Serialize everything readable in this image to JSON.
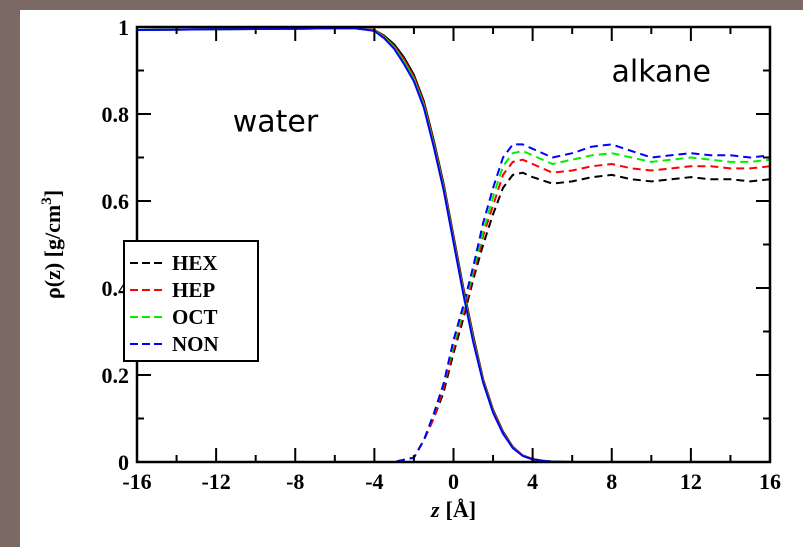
{
  "chart_data": {
    "type": "line",
    "xlabel_var": "z",
    "xlabel_unit": "[Å]",
    "ylabel_prefix": "ρ(z) [g/cm",
    "ylabel_sup": "3",
    "ylabel_suffix": "]",
    "xlim": [
      -16,
      16
    ],
    "ylim": [
      0,
      1
    ],
    "xticks": [
      -16,
      -12,
      -8,
      -4,
      0,
      4,
      8,
      12,
      16
    ],
    "yticks": [
      0,
      0.2,
      0.4,
      0.6,
      0.8,
      1
    ],
    "ytick_labels": [
      "0",
      "0.2",
      "0.4",
      "0.6",
      "0.8",
      "1"
    ],
    "grid": false,
    "legend_position": "left-middle",
    "annotations": [
      {
        "text": "water",
        "x": -9,
        "y": 0.76
      },
      {
        "text": "alkane",
        "x": 10.5,
        "y": 0.875
      }
    ],
    "series": [
      {
        "name": "HEX",
        "color": "#000000",
        "style": "dashed",
        "phase": "alkane",
        "x": [
          -16,
          -4,
          -3,
          -2,
          -1.5,
          -1,
          -0.5,
          0,
          0.5,
          1,
          1.5,
          2,
          2.5,
          3,
          3.5,
          4,
          5,
          6,
          7,
          8,
          9,
          10,
          11,
          12,
          13,
          14,
          15,
          16
        ],
        "y": [
          0,
          0,
          0,
          0.01,
          0.05,
          0.1,
          0.16,
          0.25,
          0.33,
          0.42,
          0.5,
          0.57,
          0.63,
          0.66,
          0.665,
          0.655,
          0.64,
          0.645,
          0.655,
          0.66,
          0.65,
          0.645,
          0.65,
          0.655,
          0.65,
          0.65,
          0.645,
          0.65
        ]
      },
      {
        "name": "HEP",
        "color": "#ff0000",
        "style": "dashed",
        "phase": "alkane",
        "x": [
          -16,
          -4,
          -3,
          -2,
          -1.5,
          -1,
          -0.5,
          0,
          0.5,
          1,
          1.5,
          2,
          2.5,
          3,
          3.5,
          4,
          5,
          6,
          7,
          8,
          9,
          10,
          11,
          12,
          13,
          14,
          15,
          16
        ],
        "y": [
          0,
          0,
          0,
          0.01,
          0.05,
          0.1,
          0.17,
          0.26,
          0.34,
          0.43,
          0.52,
          0.59,
          0.66,
          0.69,
          0.695,
          0.685,
          0.665,
          0.67,
          0.68,
          0.685,
          0.675,
          0.67,
          0.675,
          0.68,
          0.68,
          0.675,
          0.675,
          0.68
        ]
      },
      {
        "name": "OCT",
        "color": "#00ee00",
        "style": "dashed",
        "phase": "alkane",
        "x": [
          -16,
          -4,
          -3,
          -2,
          -1.5,
          -1,
          -0.5,
          0,
          0.5,
          1,
          1.5,
          2,
          2.5,
          3,
          3.5,
          4,
          5,
          6,
          7,
          8,
          9,
          10,
          11,
          12,
          13,
          14,
          15,
          16
        ],
        "y": [
          0,
          0,
          0,
          0.01,
          0.05,
          0.11,
          0.18,
          0.27,
          0.35,
          0.44,
          0.53,
          0.61,
          0.68,
          0.71,
          0.715,
          0.705,
          0.685,
          0.695,
          0.705,
          0.71,
          0.7,
          0.69,
          0.695,
          0.7,
          0.695,
          0.69,
          0.69,
          0.695
        ]
      },
      {
        "name": "NON",
        "color": "#0000ff",
        "style": "dashed",
        "phase": "alkane",
        "x": [
          -16,
          -4,
          -3,
          -2,
          -1.5,
          -1,
          -0.5,
          0,
          0.5,
          1,
          1.5,
          2,
          2.5,
          3,
          3.5,
          4,
          5,
          6,
          7,
          8,
          9,
          10,
          11,
          12,
          13,
          14,
          15,
          16
        ],
        "y": [
          0,
          0,
          0,
          0.01,
          0.05,
          0.11,
          0.18,
          0.28,
          0.36,
          0.45,
          0.55,
          0.63,
          0.7,
          0.73,
          0.73,
          0.72,
          0.7,
          0.71,
          0.725,
          0.73,
          0.715,
          0.7,
          0.705,
          0.71,
          0.705,
          0.705,
          0.7,
          0.705
        ]
      },
      {
        "name": "HEX",
        "color": "#000000",
        "style": "solid",
        "phase": "water",
        "x": [
          -16,
          -12,
          -8,
          -6,
          -5,
          -4,
          -3.5,
          -3,
          -2.5,
          -2,
          -1.5,
          -1,
          -0.5,
          0,
          0.5,
          1,
          1.5,
          2,
          2.5,
          3,
          3.5,
          4,
          4.5,
          5,
          6,
          16
        ],
        "y": [
          0.993,
          0.995,
          0.996,
          0.997,
          0.997,
          0.993,
          0.98,
          0.96,
          0.93,
          0.89,
          0.83,
          0.74,
          0.64,
          0.52,
          0.4,
          0.29,
          0.19,
          0.12,
          0.07,
          0.035,
          0.015,
          0.007,
          0.003,
          0.001,
          0,
          0
        ]
      },
      {
        "name": "HEP",
        "color": "#ff0000",
        "style": "solid",
        "phase": "water",
        "x": [
          -16,
          -12,
          -8,
          -6,
          -5,
          -4,
          -3.5,
          -3,
          -2.5,
          -2,
          -1.5,
          -1,
          -0.5,
          0,
          0.5,
          1,
          1.5,
          2,
          2.5,
          3,
          3.5,
          4,
          4.5,
          5,
          6,
          16
        ],
        "y": [
          0.993,
          0.995,
          0.996,
          0.997,
          0.997,
          0.993,
          0.978,
          0.956,
          0.925,
          0.885,
          0.825,
          0.735,
          0.635,
          0.515,
          0.395,
          0.285,
          0.188,
          0.118,
          0.068,
          0.034,
          0.015,
          0.007,
          0.003,
          0.001,
          0,
          0
        ]
      },
      {
        "name": "OCT",
        "color": "#00ee00",
        "style": "solid",
        "phase": "water",
        "x": [
          -16,
          -12,
          -8,
          -6,
          -5,
          -4,
          -3.5,
          -3,
          -2.5,
          -2,
          -1.5,
          -1,
          -0.5,
          0,
          0.5,
          1,
          1.5,
          2,
          2.5,
          3,
          3.5,
          4,
          4.5,
          5,
          6,
          16
        ],
        "y": [
          0.993,
          0.995,
          0.996,
          0.997,
          0.997,
          0.992,
          0.976,
          0.953,
          0.92,
          0.88,
          0.82,
          0.73,
          0.63,
          0.51,
          0.39,
          0.28,
          0.185,
          0.115,
          0.066,
          0.033,
          0.014,
          0.006,
          0.003,
          0.001,
          0,
          0
        ]
      },
      {
        "name": "NON",
        "color": "#0000ff",
        "style": "solid",
        "phase": "water",
        "x": [
          -16,
          -12,
          -8,
          -6,
          -5,
          -4,
          -3.5,
          -3,
          -2.5,
          -2,
          -1.5,
          -1,
          -0.5,
          0,
          0.5,
          1,
          1.5,
          2,
          2.5,
          3,
          3.5,
          4,
          4.5,
          5,
          6,
          16
        ],
        "y": [
          0.993,
          0.995,
          0.996,
          0.997,
          0.997,
          0.991,
          0.974,
          0.95,
          0.915,
          0.875,
          0.815,
          0.725,
          0.625,
          0.505,
          0.385,
          0.275,
          0.182,
          0.113,
          0.065,
          0.032,
          0.014,
          0.006,
          0.003,
          0.001,
          0,
          0
        ]
      }
    ],
    "legend": [
      {
        "label": "HEX",
        "color": "#000000"
      },
      {
        "label": "HEP",
        "color": "#ff0000"
      },
      {
        "label": "OCT",
        "color": "#00ee00"
      },
      {
        "label": "NON",
        "color": "#0000ff"
      }
    ]
  }
}
